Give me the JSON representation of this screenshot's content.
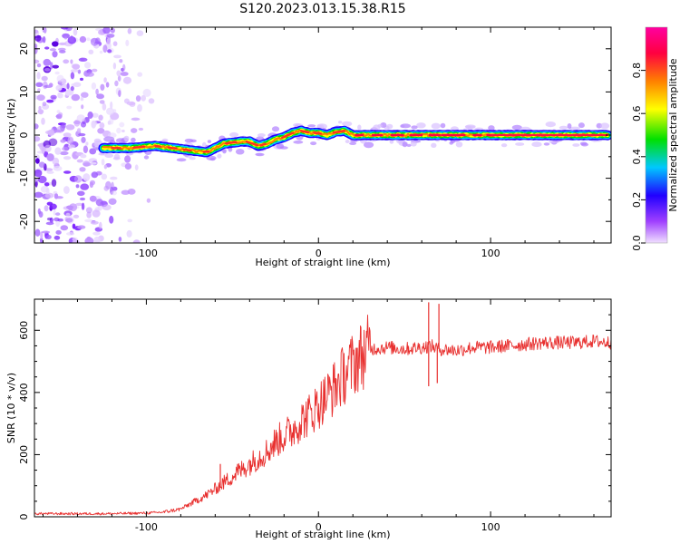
{
  "figure": {
    "title": "S120.2023.013.15.38.R15"
  },
  "chart_data": [
    {
      "type": "heatmap",
      "xlabel": "Height of straight line (km)",
      "ylabel": "Frequency (Hz)",
      "xlim": [
        -165,
        170
      ],
      "ylim": [
        -25,
        25
      ],
      "x_ticks": [
        -100,
        0,
        100
      ],
      "y_ticks": [
        -20,
        -10,
        0,
        10,
        20
      ],
      "colorbar": {
        "label": "Normalized spectral amplitude",
        "ticks": [
          0.0,
          0.2,
          0.4,
          0.6,
          0.8
        ],
        "range": [
          0,
          1
        ],
        "colormap": [
          "#f0e0ff",
          "#a040ff",
          "#2000ff",
          "#00c8ff",
          "#00e000",
          "#ffff00",
          "#ff8000",
          "#ff0040",
          "#ff00a0"
        ]
      },
      "ridge": {
        "x": [
          -125,
          -110,
          -95,
          -85,
          -75,
          -65,
          -55,
          -45,
          -40,
          -35,
          -30,
          -25,
          -20,
          -15,
          -10,
          -5,
          0,
          5,
          10,
          15,
          20,
          30,
          50,
          70,
          90,
          110,
          130,
          150,
          168
        ],
        "y": [
          -3,
          -3,
          -2.5,
          -3,
          -3.5,
          -4,
          -2,
          -1.5,
          -1.5,
          -2.5,
          -2,
          -1,
          -0.5,
          0.5,
          1,
          0.5,
          0.5,
          0,
          0.8,
          1,
          0,
          0,
          0,
          0,
          0,
          0,
          0,
          0,
          0
        ]
      },
      "noise_region_x": [
        -165,
        -92
      ]
    },
    {
      "type": "line",
      "xlabel": "Height of straight line (km)",
      "ylabel": "SNR (10 * v/v)",
      "xlim": [
        -165,
        170
      ],
      "ylim": [
        0,
        700
      ],
      "x_ticks": [
        -100,
        0,
        100
      ],
      "y_ticks": [
        0,
        200,
        400,
        600
      ],
      "series": [
        {
          "color": "#e8302f",
          "x": [
            -165,
            -140,
            -120,
            -100,
            -90,
            -80,
            -75,
            -70,
            -65,
            -60,
            -55,
            -50,
            -45,
            -40,
            -35,
            -30,
            -25,
            -20,
            -15,
            -10,
            -5,
            0,
            5,
            10,
            15,
            20,
            25,
            30,
            40,
            50,
            60,
            65,
            70,
            80,
            90,
            100,
            110,
            120,
            130,
            140,
            150,
            160,
            170
          ],
          "values": [
            10,
            10,
            10,
            12,
            15,
            25,
            40,
            55,
            70,
            90,
            110,
            130,
            150,
            170,
            190,
            210,
            240,
            260,
            280,
            310,
            330,
            360,
            390,
            420,
            460,
            490,
            520,
            540,
            545,
            540,
            545,
            550,
            540,
            535,
            545,
            545,
            550,
            555,
            560,
            560,
            560,
            565,
            560
          ]
        }
      ],
      "spikes": [
        {
          "x": 64,
          "value": 690
        },
        {
          "x": 70,
          "value": 685
        },
        {
          "x": -57,
          "value": 170
        },
        {
          "x": -47,
          "value": 170
        },
        {
          "x": 64,
          "value": 420
        },
        {
          "x": 69,
          "value": 430
        }
      ]
    }
  ]
}
